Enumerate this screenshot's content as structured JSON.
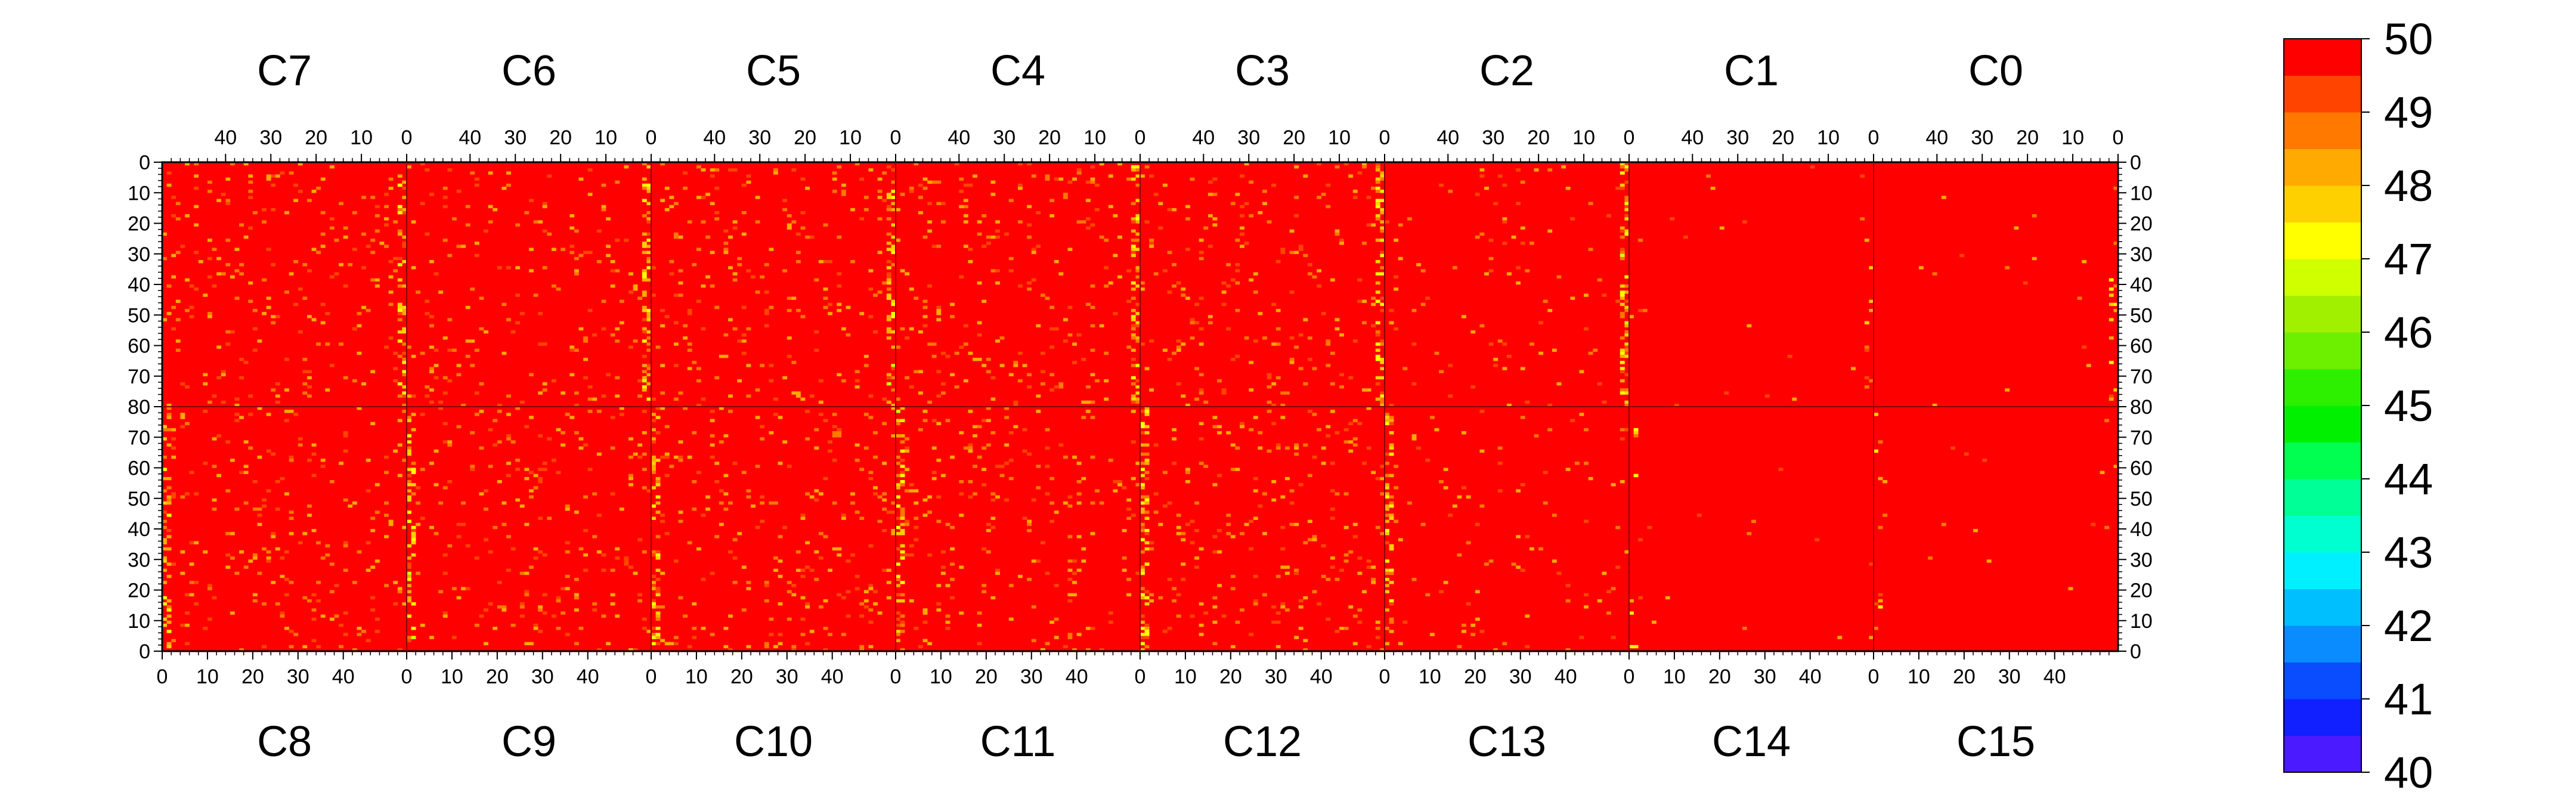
{
  "chart_data": {
    "type": "heatmap",
    "title": "",
    "xlabel": "",
    "ylabel": "",
    "grid": false,
    "legend": "right",
    "top_chip_labels": [
      "C7",
      "C6",
      "C5",
      "C4",
      "C3",
      "C2",
      "C1",
      "C0"
    ],
    "bottom_chip_labels": [
      "C8",
      "C9",
      "C10",
      "C11",
      "C12",
      "C13",
      "C14",
      "C15"
    ],
    "top_x_ticks": [
      "40",
      "30",
      "20",
      "10",
      "0"
    ],
    "bottom_x_ticks": [
      "0",
      "10",
      "20",
      "30",
      "40"
    ],
    "upper_y_ticks": [
      "0",
      "10",
      "20",
      "30",
      "40",
      "50",
      "60",
      "70",
      "80"
    ],
    "lower_y_ticks": [
      "70",
      "60",
      "50",
      "40",
      "30",
      "20",
      "10",
      "0"
    ],
    "columns_per_chip": 54,
    "rows_per_half": 80,
    "x_range_per_chip": [
      0,
      54
    ],
    "y_range": [
      0,
      160
    ],
    "z_range": [
      40,
      50
    ],
    "colorbar_ticks": [
      "50",
      "49",
      "48",
      "47",
      "46",
      "45",
      "44",
      "43",
      "42",
      "41",
      "40"
    ],
    "palette": [
      "#7a1aff",
      "#4b1aff",
      "#1020ff",
      "#0a4cff",
      "#0a8cff",
      "#00bfff",
      "#00f0ff",
      "#00ffd0",
      "#00ff96",
      "#00ff50",
      "#00f000",
      "#2cf000",
      "#6cf000",
      "#a0f000",
      "#d0ff00",
      "#ffff00",
      "#ffd000",
      "#ffaa00",
      "#ff7800",
      "#ff4400",
      "#ff0000"
    ],
    "base_value": 50,
    "hot_columns_per_chip": [
      0,
      1
    ],
    "noisy_chips": [
      "C7",
      "C6",
      "C5",
      "C4",
      "C3",
      "C8",
      "C9",
      "C10",
      "C11",
      "C12"
    ],
    "quiet_chips": [
      "C1",
      "C0",
      "C14",
      "C15"
    ]
  }
}
